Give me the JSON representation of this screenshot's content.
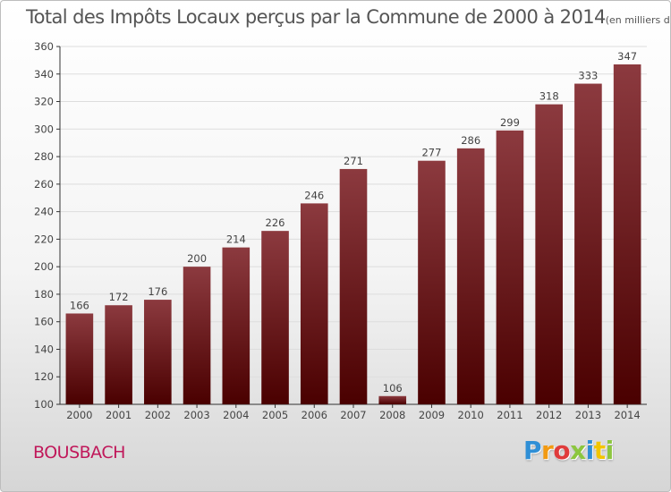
{
  "title": "Total des Impôts Locaux perçus par la Commune de 2000 à 2014",
  "title_unit": "(en milliers d'€)",
  "commune": "BOUSBACH",
  "logo": {
    "letters": [
      "P",
      "r",
      "o",
      "x",
      "i",
      "t",
      "i"
    ],
    "colors": [
      "#2f8fd6",
      "#f29a12",
      "#e03b3b",
      "#8cc63f",
      "#2f8fd6",
      "#f2c500",
      "#8cc63f"
    ]
  },
  "colors": {
    "bar_top": "#8c3a3f",
    "bar_bottom": "#4a0000",
    "commune": "#c0185a"
  },
  "chart_data": {
    "type": "bar",
    "title": "Total des Impôts Locaux perçus par la Commune de 2000 à 2014",
    "xlabel": "",
    "ylabel": "",
    "categories": [
      "2000",
      "2001",
      "2002",
      "2003",
      "2004",
      "2005",
      "2006",
      "2007",
      "2008",
      "2009",
      "2010",
      "2011",
      "2012",
      "2013",
      "2014"
    ],
    "values": [
      166,
      172,
      176,
      200,
      214,
      226,
      246,
      271,
      106,
      277,
      286,
      299,
      318,
      333,
      347
    ],
    "ylim": [
      100,
      360
    ],
    "yticks": [
      100,
      120,
      140,
      160,
      180,
      200,
      220,
      240,
      260,
      280,
      300,
      320,
      340,
      360
    ],
    "grid": true
  }
}
